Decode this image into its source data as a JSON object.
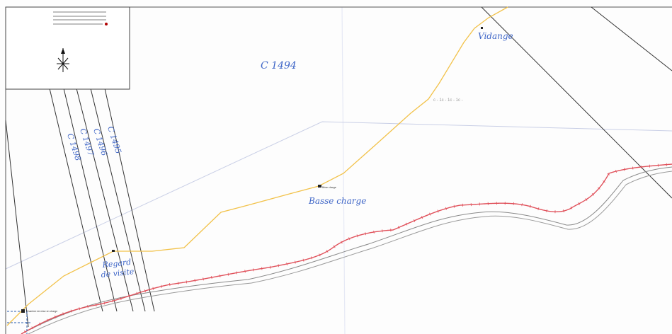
{
  "legend": {
    "rows": [
      {
        "label": "",
        "color": "#555555"
      },
      {
        "label": "",
        "color": "#555555"
      },
      {
        "label": "",
        "color": "#555555"
      },
      {
        "label": "",
        "color": "#b00000"
      }
    ]
  },
  "parcels": {
    "main": "C 1494",
    "strips": [
      "C 1495",
      "C 1496",
      "C 1497",
      "C 1498"
    ]
  },
  "annotations": {
    "vidange": "Vidange",
    "basse_charge": "Basse charge",
    "regard_1": "Regard",
    "regard_2": "de visite",
    "faint_note": "c - 1c - 1c - 1c -"
  },
  "small_labels": {
    "brise_charge": "Brise charge",
    "chambre": "Chambre de mise en charge"
  },
  "colors": {
    "water_line": "#f2c24a",
    "red_line": "#e0505a",
    "parcel_line": "#333333",
    "handwriting": "#3f66c7"
  },
  "icons": {
    "north_arrow": "north-arrow-icon"
  }
}
